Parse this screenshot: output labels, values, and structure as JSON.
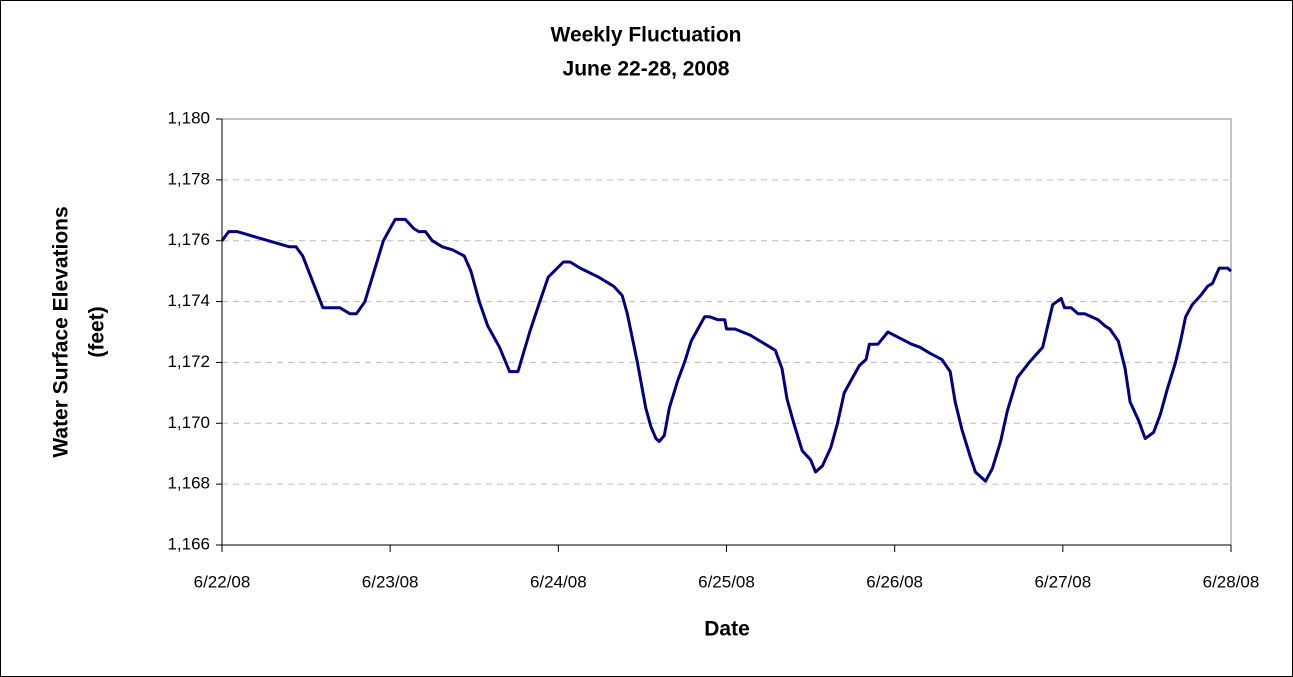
{
  "chart_data": {
    "type": "line",
    "title": "Weekly Fluctuation",
    "subtitle": "June 22-28, 2008",
    "xlabel": "Date",
    "ylabel": [
      "Water Surface Elevations",
      "(feet)"
    ],
    "x": [
      0,
      0.04,
      0.09,
      0.4,
      0.44,
      0.48,
      0.6,
      0.7,
      0.76,
      0.8,
      0.85,
      0.96,
      1.03,
      1.09,
      1.14,
      1.17,
      1.21,
      1.25,
      1.31,
      1.37,
      1.44,
      1.48,
      1.53,
      1.58,
      1.65,
      1.71,
      1.76,
      1.83,
      1.89,
      1.94,
      2.03,
      2.07,
      2.13,
      2.24,
      2.33,
      2.38,
      2.41,
      2.47,
      2.52,
      2.55,
      2.58,
      2.6,
      2.63,
      2.66,
      2.71,
      2.75,
      2.79,
      2.84,
      2.87,
      2.9,
      2.95,
      2.99,
      3.0,
      3.05,
      3.14,
      3.2,
      3.26,
      3.29,
      3.33,
      3.36,
      3.4,
      3.45,
      3.5,
      3.53,
      3.57,
      3.62,
      3.66,
      3.7,
      3.75,
      3.79,
      3.83,
      3.85,
      3.9,
      3.96,
      4.03,
      4.1,
      4.15,
      4.21,
      4.28,
      4.33,
      4.36,
      4.4,
      4.45,
      4.48,
      4.54,
      4.58,
      4.63,
      4.67,
      4.73,
      4.8,
      4.88,
      4.91,
      4.94,
      4.99,
      5.01,
      5.05,
      5.09,
      5.13,
      5.21,
      5.25,
      5.28,
      5.33,
      5.37,
      5.4,
      5.45,
      5.49,
      5.54,
      5.58,
      5.62,
      5.67,
      5.7,
      5.73,
      5.77,
      5.82,
      5.86,
      5.89,
      5.93,
      5.98,
      6
    ],
    "values": [
      1176.0,
      1176.3,
      1176.3,
      1175.8,
      1175.8,
      1175.5,
      1173.8,
      1173.8,
      1173.6,
      1173.6,
      1174.0,
      1176.0,
      1176.7,
      1176.7,
      1176.4,
      1176.3,
      1176.3,
      1176.0,
      1175.8,
      1175.7,
      1175.5,
      1175.0,
      1174.0,
      1173.2,
      1172.5,
      1171.7,
      1171.7,
      1173.0,
      1174.0,
      1174.8,
      1175.3,
      1175.3,
      1175.1,
      1174.8,
      1174.5,
      1174.2,
      1173.6,
      1172.0,
      1170.5,
      1169.9,
      1169.5,
      1169.4,
      1169.6,
      1170.5,
      1171.4,
      1172.0,
      1172.7,
      1173.2,
      1173.5,
      1173.5,
      1173.4,
      1173.4,
      1173.1,
      1173.1,
      1172.9,
      1172.7,
      1172.5,
      1172.4,
      1171.8,
      1170.8,
      1170.0,
      1169.1,
      1168.8,
      1168.4,
      1168.6,
      1169.2,
      1170.0,
      1171.0,
      1171.5,
      1171.9,
      1172.1,
      1172.6,
      1172.6,
      1173.0,
      1172.8,
      1172.6,
      1172.5,
      1172.3,
      1172.1,
      1171.7,
      1170.7,
      1169.8,
      1168.9,
      1168.4,
      1168.1,
      1168.5,
      1169.4,
      1170.4,
      1171.5,
      1172.0,
      1172.5,
      1173.2,
      1173.9,
      1174.1,
      1173.8,
      1173.8,
      1173.6,
      1173.6,
      1173.4,
      1173.2,
      1173.1,
      1172.7,
      1171.8,
      1170.7,
      1170.1,
      1169.5,
      1169.7,
      1170.3,
      1171.1,
      1172.0,
      1172.7,
      1173.5,
      1173.9,
      1174.2,
      1174.5,
      1174.6,
      1175.1,
      1175.1,
      1175.0
    ],
    "color": "#000080",
    "xlim": [
      0,
      6
    ],
    "xticks": [
      {
        "value": 0,
        "label": "6/22/08"
      },
      {
        "value": 1,
        "label": "6/23/08"
      },
      {
        "value": 2,
        "label": "6/24/08"
      },
      {
        "value": 3,
        "label": "6/25/08"
      },
      {
        "value": 4,
        "label": "6/26/08"
      },
      {
        "value": 5,
        "label": "6/27/08"
      },
      {
        "value": 6,
        "label": "6/28/08"
      }
    ],
    "ylim": [
      1166,
      1180
    ],
    "yticks": [
      {
        "value": 1166,
        "label": "1,166"
      },
      {
        "value": 1168,
        "label": "1,168"
      },
      {
        "value": 1170,
        "label": "1,170"
      },
      {
        "value": 1172,
        "label": "1,172"
      },
      {
        "value": 1174,
        "label": "1,174"
      },
      {
        "value": 1176,
        "label": "1,176"
      },
      {
        "value": 1178,
        "label": "1,178"
      },
      {
        "value": 1180,
        "label": "1,180"
      }
    ],
    "grid": true
  }
}
